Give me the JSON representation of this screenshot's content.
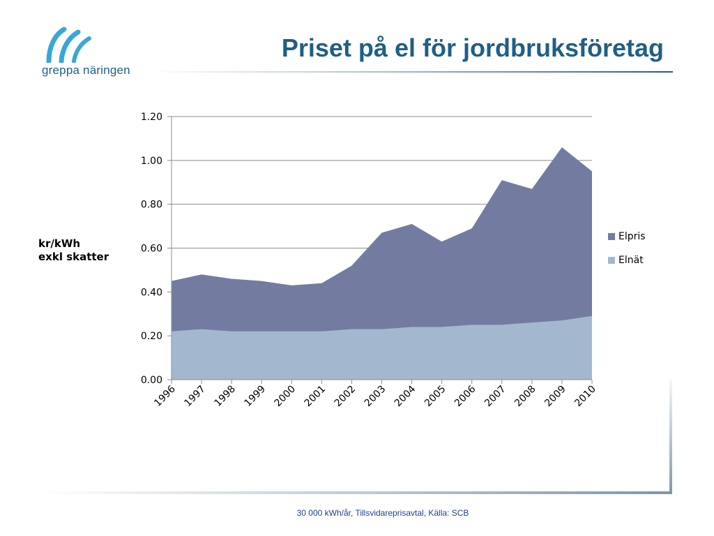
{
  "logo": {
    "text": "greppa näringen",
    "color": "#3aa6d8"
  },
  "title": "Priset på el för jordbruksföretag",
  "footer": "30 000 kWh/år, Tillsvidareprisavtal, Källa: SCB",
  "chart_data": {
    "type": "area",
    "stacked": true,
    "categories": [
      "1996",
      "1997",
      "1998",
      "1999",
      "2000",
      "2001",
      "2002",
      "2003",
      "2004",
      "2005",
      "2006",
      "2007",
      "2008",
      "2009",
      "2010"
    ],
    "series": [
      {
        "name": "Elnät",
        "color": "#a3b8cf",
        "values": [
          0.22,
          0.23,
          0.22,
          0.22,
          0.22,
          0.22,
          0.23,
          0.23,
          0.24,
          0.24,
          0.25,
          0.25,
          0.26,
          0.27,
          0.29
        ]
      },
      {
        "name": "Elpris",
        "color": "#737ca0",
        "values": [
          0.23,
          0.25,
          0.24,
          0.23,
          0.21,
          0.22,
          0.29,
          0.44,
          0.47,
          0.39,
          0.44,
          0.66,
          0.61,
          0.79,
          0.66
        ]
      }
    ],
    "legend_order": [
      "Elpris",
      "Elnät"
    ],
    "ylabel_lines": [
      "kr/kWh",
      "exkl skatter"
    ],
    "ylim": [
      0,
      1.2
    ],
    "yticks": [
      "0.00",
      "0.20",
      "0.40",
      "0.60",
      "0.80",
      "1.00",
      "1.20"
    ],
    "ytick_values": [
      0,
      0.2,
      0.4,
      0.6,
      0.8,
      1.0,
      1.2
    ],
    "grid": true,
    "legend_position": "right"
  }
}
